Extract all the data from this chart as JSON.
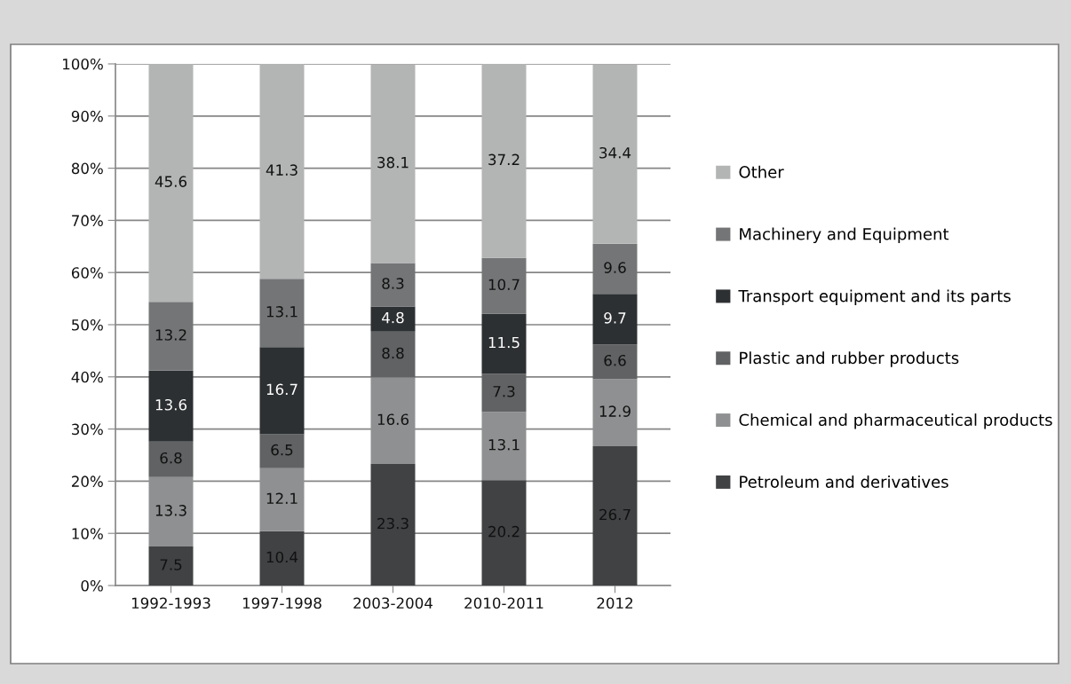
{
  "chart_data": {
    "type": "bar",
    "stacked": true,
    "categories": [
      "1992-1993",
      "1997-1998",
      "2003-2004",
      "2010-2011",
      "2012"
    ],
    "series": [
      {
        "name": "Petroleum and derivatives",
        "color": "#404244",
        "values": [
          7.5,
          10.4,
          23.3,
          20.2,
          26.7
        ]
      },
      {
        "name": "Chemical and pharmaceutical products",
        "color": "#8e9091",
        "values": [
          13.3,
          12.1,
          16.6,
          13.1,
          12.9
        ]
      },
      {
        "name": "Plastic and rubber products",
        "color": "#606263",
        "values": [
          6.8,
          6.5,
          8.8,
          7.3,
          6.6
        ]
      },
      {
        "name": "Transport equipment and its parts",
        "color": "#2d3032",
        "values": [
          13.6,
          16.7,
          4.8,
          11.5,
          9.7
        ]
      },
      {
        "name": "Machinery and Equipment",
        "color": "#737576",
        "values": [
          13.2,
          13.1,
          8.3,
          10.7,
          9.6
        ]
      },
      {
        "name": "Other",
        "color": "#b3b4b4",
        "values": [
          45.6,
          41.3,
          38.1,
          37.2,
          34.4
        ]
      }
    ],
    "ylim": [
      0,
      100
    ],
    "yticks": [
      {
        "value": 0,
        "label": "0%"
      },
      {
        "value": 10,
        "label": "10%"
      },
      {
        "value": 20,
        "label": "20%"
      },
      {
        "value": 30,
        "label": "30%"
      },
      {
        "value": 40,
        "label": "40%"
      },
      {
        "value": 50,
        "label": "50%"
      },
      {
        "value": 60,
        "label": "60%"
      },
      {
        "value": 70,
        "label": "70%"
      },
      {
        "value": 80,
        "label": "80%"
      },
      {
        "value": 90,
        "label": "90%"
      },
      {
        "value": 100,
        "label": "100%"
      }
    ],
    "grid": "y",
    "legend": "right",
    "data_labels": true
  }
}
